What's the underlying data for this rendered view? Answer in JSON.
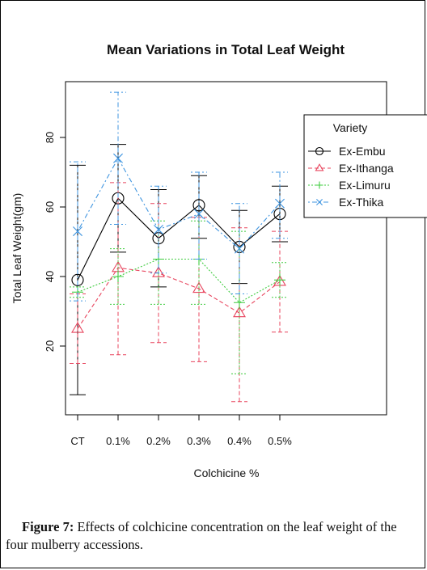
{
  "chart_data": {
    "type": "line",
    "title": "Mean Variations in Total Leaf Weight",
    "xlabel": "Colchicine %",
    "ylabel": "Total Leaf Weight(gm)",
    "categories": [
      "CT",
      "0.1%",
      "0.2%",
      "0.3%",
      "0.4%",
      "0.5%"
    ],
    "ylim": [
      0,
      97
    ],
    "yticks": [
      20,
      40,
      60,
      80
    ],
    "legend": {
      "title": "Variety",
      "position": "top-right"
    },
    "series": [
      {
        "name": "Ex-Embu",
        "color": "#000000",
        "marker": "circle",
        "dash": "solid",
        "values": [
          39,
          62.5,
          51,
          60.5,
          48.5,
          58
        ],
        "err_low": [
          6,
          47,
          37,
          51,
          38,
          50
        ],
        "err_high": [
          72,
          78,
          65,
          69,
          59,
          66
        ]
      },
      {
        "name": "Ex-Ithanga",
        "color": "#e8455e",
        "marker": "triangle",
        "dash": "dashed",
        "values": [
          25,
          42.5,
          41,
          36.5,
          29.5,
          38.5
        ],
        "err_low": [
          15,
          17.5,
          21,
          15.5,
          4,
          24
        ],
        "err_high": [
          35,
          67,
          61,
          57,
          54,
          53
        ]
      },
      {
        "name": "Ex-Limuru",
        "color": "#3fcc3f",
        "marker": "plus",
        "dash": "dotted",
        "values": [
          35.5,
          40,
          45,
          45,
          32.5,
          39
        ],
        "err_low": [
          34,
          32,
          32,
          32,
          12,
          34
        ],
        "err_high": [
          37,
          48,
          56,
          56,
          53,
          44
        ]
      },
      {
        "name": "Ex-Thika",
        "color": "#3f95e0",
        "marker": "x",
        "dash": "dotdash",
        "values": [
          53,
          74,
          53.5,
          58,
          48,
          61
        ],
        "err_low": [
          33,
          55,
          41,
          45,
          35,
          51
        ],
        "err_high": [
          73,
          93,
          66,
          70,
          61,
          70
        ]
      }
    ]
  },
  "caption": {
    "label": "Figure 7:",
    "text": " Effects of colchicine concentration on the leaf weight of the four mulberry accessions."
  }
}
